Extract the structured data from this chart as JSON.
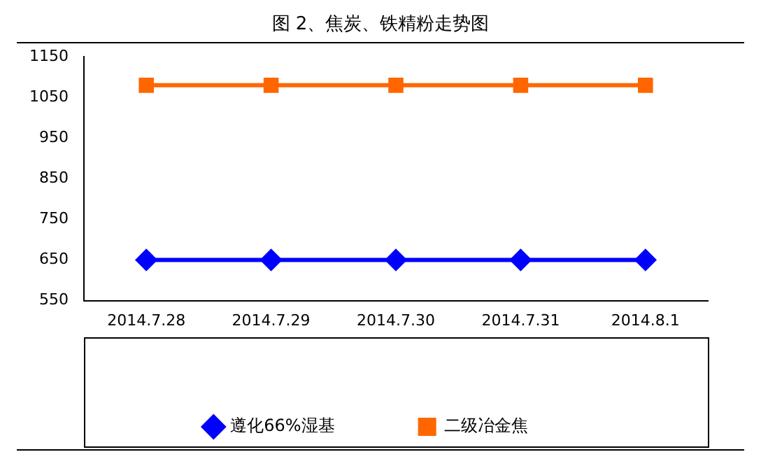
{
  "chart_data": {
    "type": "line",
    "title": "图 2、焦炭、铁精粉走势图",
    "categories": [
      "2014.7.28",
      "2014.7.29",
      "2014.7.30",
      "2014.7.31",
      "2014.8.1"
    ],
    "series": [
      {
        "name": "遵化66%湿基",
        "color": "#0000ff",
        "marker": "diamond",
        "values": [
          650,
          650,
          650,
          650,
          650
        ]
      },
      {
        "name": "二级冶金焦",
        "color": "#ff6600",
        "marker": "square",
        "values": [
          1080,
          1080,
          1080,
          1080,
          1080
        ]
      }
    ],
    "ylim": [
      550,
      1150
    ],
    "yticks": [
      550,
      650,
      750,
      850,
      950,
      1050,
      1150
    ],
    "grid": false,
    "legend": "bottom"
  }
}
